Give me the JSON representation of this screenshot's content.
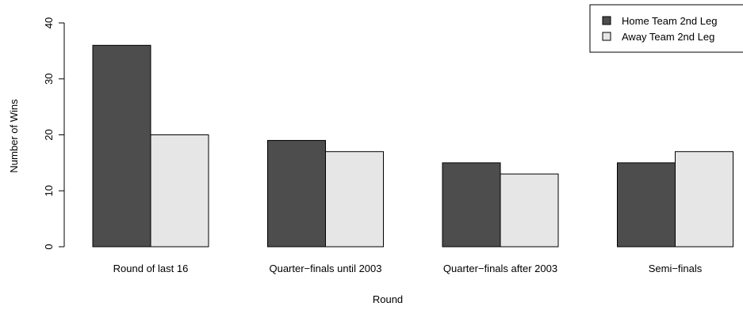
{
  "chart_data": {
    "type": "bar",
    "title": "",
    "xlabel": "Round",
    "ylabel": "Number of Wins",
    "categories": [
      "Round of last 16",
      "Quarter−finals until 2003",
      "Quarter−finals after 2003",
      "Semi−finals"
    ],
    "series": [
      {
        "name": "Home Team 2nd Leg",
        "color": "#4d4d4d",
        "values": [
          36,
          19,
          15,
          15
        ]
      },
      {
        "name": "Away Team 2nd Leg",
        "color": "#e6e6e6",
        "values": [
          20,
          17,
          13,
          17
        ]
      }
    ],
    "ylim": [
      0,
      40
    ],
    "yticks": [
      0,
      10,
      20,
      30,
      40
    ],
    "grid": false,
    "legend_position": "top-right"
  }
}
